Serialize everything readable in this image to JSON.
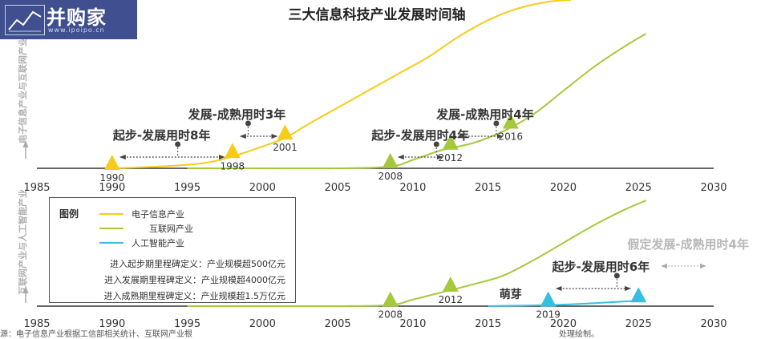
{
  "logo": {
    "name": "并购家",
    "url": "www.ipoipo.cn"
  },
  "source": {
    "left": "源：电子信息产业根据工信部相关统计、互联网产业根",
    "right": "处理绘制。"
  },
  "legend": {
    "title": "图例",
    "items": [
      "电子信息产业",
      "互联网产业",
      "人工智能产业"
    ],
    "definitions": [
      "进入起步期里程碑定义：产业规模超500亿元",
      "进入发展期里程碑定义：产业规模超4000亿元",
      "进入成熟期里程碑定义：产业规模超1.5万亿元"
    ]
  },
  "chart_data": [
    {
      "type": "line",
      "title": "三大信息科技产业发展时间轴",
      "ylabel": "电子信息产业与互联网产业",
      "x_ticks": [
        1985,
        1990,
        1995,
        2000,
        2005,
        2010,
        2015,
        2020,
        2025,
        2030
      ],
      "xlim": [
        1985,
        2030
      ],
      "colors": {
        "电子信息产业": "#f5cc18",
        "互联网产业": "#a6c93b",
        "人工智能产业": "#35c0e0",
        "gray": "#aaaaaa",
        "axis": "#333333"
      },
      "series": [
        {
          "name": "电子信息产业",
          "color": "#f5cc18",
          "x": [
            1990,
            1993,
            1996,
            1998,
            2000,
            2001.5,
            2003,
            2005,
            2007,
            2009,
            2011,
            2013,
            2015,
            2017,
            2019,
            2020.5
          ],
          "y": [
            0,
            0.01,
            0.03,
            0.07,
            0.13,
            0.18,
            0.26,
            0.36,
            0.46,
            0.56,
            0.66,
            0.78,
            0.88,
            0.95,
            0.99,
            1.0
          ]
        },
        {
          "name": "互联网产业",
          "color": "#a6c93b",
          "x": [
            1995,
            2000,
            2005,
            2008.5,
            2010,
            2012,
            2014,
            2016,
            2018,
            2020,
            2022,
            2024,
            2025.5
          ],
          "y": [
            0,
            0,
            0,
            0.01,
            0.05,
            0.11,
            0.15,
            0.22,
            0.32,
            0.46,
            0.6,
            0.72,
            0.8
          ]
        }
      ],
      "milestones": [
        {
          "series": "电子信息产业",
          "year": 1990,
          "label": "1990"
        },
        {
          "series": "电子信息产业",
          "year": 1998,
          "label": "1998"
        },
        {
          "series": "电子信息产业",
          "year": 2001.5,
          "label": "2001"
        },
        {
          "series": "互联网产业",
          "year": 2008.5,
          "label": "2008"
        },
        {
          "series": "互联网产业",
          "year": 2012.5,
          "label": "2012"
        },
        {
          "series": "互联网产业",
          "year": 2016.5,
          "label": "2016"
        }
      ],
      "annotations": [
        {
          "text": "起步-发展用时8年",
          "from": 1990,
          "to": 1998,
          "label_year": 1993.3,
          "level": 1
        },
        {
          "text": "发展-成熟用时3年",
          "from": 1998,
          "to": 2001.5,
          "label_year": 1998.3,
          "level": 2
        },
        {
          "text": "起步-发展用时4年",
          "from": 2008.5,
          "to": 2012.5,
          "label_year": 2010.5,
          "level": 1
        },
        {
          "text": "发展-成熟用时4年",
          "from": 2012.5,
          "to": 2016.5,
          "label_year": 2014.8,
          "level": 2
        }
      ]
    },
    {
      "type": "line",
      "ylabel": "互联网产业与人工智能产业",
      "x_ticks": [
        1985,
        1990,
        1995,
        2000,
        2005,
        2010,
        2015,
        2020,
        2025,
        2030
      ],
      "xlim": [
        1985,
        2030
      ],
      "series": [
        {
          "name": "互联网产业",
          "color": "#a6c93b",
          "x": [
            1995,
            2000,
            2005,
            2008.5,
            2010,
            2012,
            2014,
            2016,
            2018,
            2020,
            2022,
            2024,
            2025.5
          ],
          "y": [
            0,
            0,
            0,
            0.01,
            0.06,
            0.13,
            0.2,
            0.28,
            0.42,
            0.58,
            0.74,
            0.88,
            0.97
          ]
        },
        {
          "name": "人工智能产业",
          "color": "#35c0e0",
          "x": [
            2015,
            2019,
            2021,
            2023,
            2025
          ],
          "y": [
            0,
            0.01,
            0.02,
            0.035,
            0.05
          ]
        }
      ],
      "milestones": [
        {
          "series": "互联网产业",
          "year": 2008.5,
          "label": "2008"
        },
        {
          "series": "互联网产业",
          "year": 2012.5,
          "label": "2012"
        },
        {
          "series": "人工智能产业",
          "year": 2019,
          "label": "2019"
        },
        {
          "series": "人工智能产业",
          "year": 2025,
          "label": ""
        }
      ],
      "annotations": [
        {
          "text": "萌芽",
          "label_year": 2016.5,
          "level": 0
        },
        {
          "text": "起步-发展用时6年",
          "from": 2019,
          "to": 2025,
          "label_year": 2022.5,
          "level": 1
        },
        {
          "text": "假定发展-成熟用时4年",
          "from": 2026,
          "to": 2030,
          "label_year": 2030,
          "level": 2,
          "style": "assumed"
        }
      ]
    }
  ]
}
